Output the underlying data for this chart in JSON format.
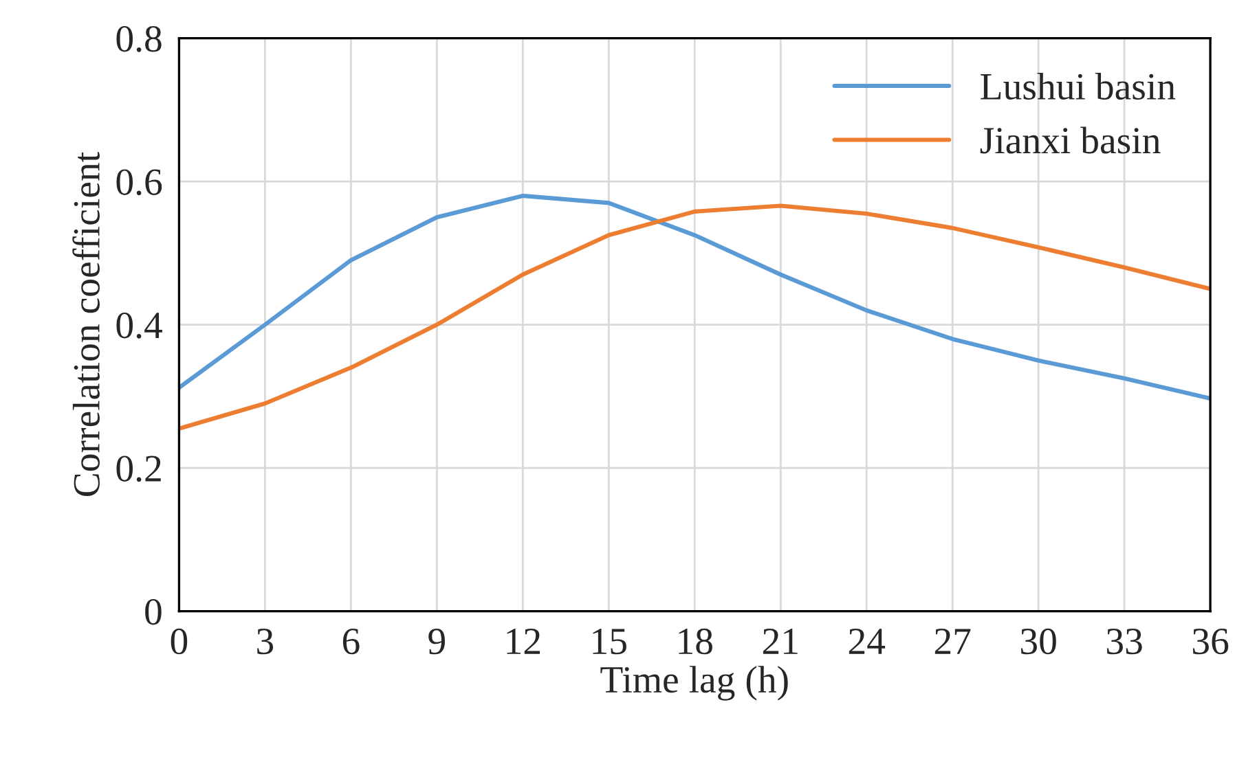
{
  "chart_data": {
    "type": "line",
    "xlabel": "Time lag (h)",
    "ylabel": "Correlation coefficient",
    "x": [
      0,
      3,
      6,
      9,
      12,
      15,
      18,
      21,
      24,
      27,
      30,
      33,
      36
    ],
    "series": [
      {
        "name": "Lushui basin",
        "color": "#5b9bd5",
        "values": [
          0.312,
          0.4,
          0.49,
          0.55,
          0.58,
          0.57,
          0.525,
          0.47,
          0.42,
          0.38,
          0.35,
          0.325,
          0.297
        ]
      },
      {
        "name": "Jianxi basin",
        "color": "#ed7d31",
        "values": [
          0.255,
          0.29,
          0.34,
          0.4,
          0.47,
          0.525,
          0.558,
          0.566,
          0.555,
          0.535,
          0.508,
          0.48,
          0.45
        ]
      }
    ],
    "xlim": [
      0,
      36
    ],
    "xticks": [
      0,
      3,
      6,
      9,
      12,
      15,
      18,
      21,
      24,
      27,
      30,
      33,
      36
    ],
    "ylim": [
      0,
      0.8
    ],
    "yticks": [
      0,
      0.2,
      0.4,
      0.6,
      0.8
    ],
    "grid": true,
    "legend": "top right",
    "marker": "none",
    "line_style": "solid"
  }
}
